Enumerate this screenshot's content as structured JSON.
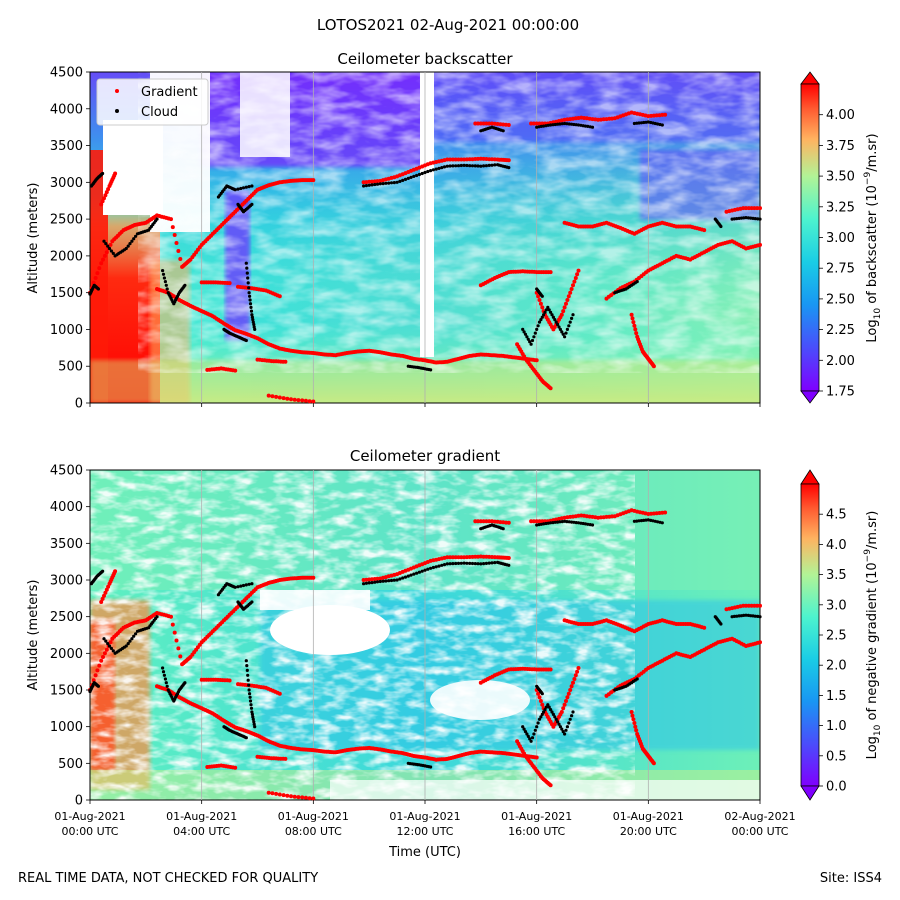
{
  "suptitle": "LOTOS2021 02-Aug-2021 00:00:00",
  "footer_left": "REAL TIME DATA, NOT CHECKED FOR QUALITY",
  "footer_right": "Site: ISS4",
  "chart_data": [
    {
      "type": "heatmap",
      "title": "Ceilometer backscatter",
      "ylabel": "Altitude (meters)",
      "xlabel": "",
      "x_range_hours": [
        0,
        24
      ],
      "ylim": [
        0,
        4500
      ],
      "yticks": [
        0,
        500,
        1000,
        1500,
        2000,
        2500,
        3000,
        3500,
        4000,
        4500
      ],
      "xticks_hours": [
        0,
        4,
        8,
        12,
        16,
        20,
        24
      ],
      "grid": "vertical",
      "legend": {
        "placement": "top-left",
        "entries": [
          "Gradient",
          "Cloud"
        ]
      },
      "colorbar": {
        "label_pre": "Log",
        "label_sub": "10",
        "label_mid": " of backscatter (10",
        "label_sup": "−9",
        "label_post": "/m.sr)",
        "range": [
          1.75,
          4.25
        ],
        "ticks": [
          1.75,
          2.0,
          2.25,
          2.5,
          2.75,
          3.0,
          3.25,
          3.5,
          3.75,
          4.0
        ],
        "tick_labels": [
          "1.75",
          "2.00",
          "2.25",
          "2.50",
          "2.75",
          "3.00",
          "3.25",
          "3.50",
          "3.75",
          "4.00"
        ]
      }
    },
    {
      "type": "heatmap",
      "title": "Ceilometer gradient",
      "ylabel": "Altitude (meters)",
      "xlabel": "Time (UTC)",
      "x_range_hours": [
        0,
        24
      ],
      "ylim": [
        0,
        4500
      ],
      "yticks": [
        0,
        500,
        1000,
        1500,
        2000,
        2500,
        3000,
        3500,
        4000,
        4500
      ],
      "xticks_hours": [
        0,
        4,
        8,
        12,
        16,
        20,
        24
      ],
      "xtick_labels": [
        [
          "01-Aug-2021",
          "00:00 UTC"
        ],
        [
          "01-Aug-2021",
          "04:00 UTC"
        ],
        [
          "01-Aug-2021",
          "08:00 UTC"
        ],
        [
          "01-Aug-2021",
          "12:00 UTC"
        ],
        [
          "01-Aug-2021",
          "16:00 UTC"
        ],
        [
          "01-Aug-2021",
          "20:00 UTC"
        ],
        [
          "02-Aug-2021",
          "00:00 UTC"
        ]
      ],
      "grid": "vertical",
      "colorbar": {
        "label_pre": "Log",
        "label_sub": "10",
        "label_mid": " of negative gradient (10",
        "label_sup": "−9",
        "label_post": "/m.sr)",
        "range": [
          0,
          5
        ],
        "ticks": [
          0,
          0.5,
          1,
          1.5,
          2,
          2.5,
          3,
          3.5,
          4,
          4.5
        ],
        "tick_labels": [
          "0.0",
          "0.5",
          "1.0",
          "1.5",
          "2.0",
          "2.5",
          "3.0",
          "3.5",
          "4.0",
          "4.5"
        ]
      }
    }
  ],
  "series": {
    "gradient": {
      "name": "Gradient",
      "color": "#ff0000",
      "segments": [
        [
          [
            0.0,
            1500
          ],
          [
            0.4,
            1900
          ],
          [
            0.8,
            2200
          ],
          [
            1.2,
            2350
          ],
          [
            1.6,
            2420
          ],
          [
            2.0,
            2450
          ],
          [
            2.4,
            2550
          ],
          [
            2.9,
            2500
          ],
          [
            3.3,
            1850
          ],
          [
            3.6,
            1950
          ],
          [
            4.0,
            2150
          ],
          [
            4.4,
            2300
          ],
          [
            4.8,
            2450
          ],
          [
            5.2,
            2600
          ],
          [
            5.6,
            2750
          ],
          [
            6.0,
            2900
          ],
          [
            6.4,
            2960
          ],
          [
            6.8,
            3000
          ],
          [
            7.2,
            3020
          ],
          [
            7.6,
            3030
          ],
          [
            8.0,
            3030
          ]
        ],
        [
          [
            0.4,
            2700
          ],
          [
            0.7,
            2950
          ],
          [
            0.9,
            3120
          ]
        ],
        [
          [
            2.4,
            1550
          ],
          [
            2.8,
            1500
          ],
          [
            3.2,
            1400
          ],
          [
            3.6,
            1320
          ],
          [
            4.0,
            1250
          ],
          [
            4.4,
            1180
          ],
          [
            4.8,
            1080
          ],
          [
            5.2,
            990
          ],
          [
            5.6,
            940
          ],
          [
            6.0,
            880
          ],
          [
            6.4,
            800
          ],
          [
            6.8,
            740
          ],
          [
            7.2,
            710
          ],
          [
            7.6,
            690
          ],
          [
            8.0,
            680
          ],
          [
            8.4,
            660
          ],
          [
            8.8,
            650
          ],
          [
            9.2,
            680
          ],
          [
            9.6,
            700
          ],
          [
            10.0,
            710
          ],
          [
            10.4,
            690
          ],
          [
            10.8,
            660
          ],
          [
            11.2,
            640
          ],
          [
            11.6,
            600
          ],
          [
            12.0,
            580
          ],
          [
            12.4,
            550
          ],
          [
            12.8,
            560
          ],
          [
            13.2,
            600
          ],
          [
            13.6,
            640
          ],
          [
            14.0,
            660
          ],
          [
            14.4,
            650
          ],
          [
            14.8,
            640
          ],
          [
            15.2,
            620
          ],
          [
            15.6,
            600
          ],
          [
            16.0,
            580
          ]
        ],
        [
          [
            4.0,
            1640
          ],
          [
            4.5,
            1640
          ],
          [
            5.0,
            1630
          ]
        ],
        [
          [
            5.3,
            1580
          ],
          [
            5.8,
            1560
          ],
          [
            6.3,
            1530
          ],
          [
            6.8,
            1450
          ]
        ],
        [
          [
            6.0,
            590
          ],
          [
            6.5,
            570
          ],
          [
            7.0,
            560
          ]
        ],
        [
          [
            4.2,
            450
          ],
          [
            4.7,
            470
          ],
          [
            5.2,
            440
          ]
        ],
        [
          [
            9.8,
            3000
          ],
          [
            10.4,
            3020
          ],
          [
            11.0,
            3080
          ],
          [
            11.6,
            3170
          ],
          [
            12.2,
            3260
          ],
          [
            12.8,
            3310
          ],
          [
            13.4,
            3310
          ],
          [
            14.0,
            3320
          ],
          [
            14.6,
            3310
          ],
          [
            15.0,
            3300
          ]
        ],
        [
          [
            13.8,
            3800
          ],
          [
            14.4,
            3800
          ],
          [
            15.0,
            3780
          ]
        ],
        [
          [
            15.8,
            3800
          ],
          [
            16.4,
            3800
          ],
          [
            17.0,
            3850
          ],
          [
            17.6,
            3880
          ],
          [
            18.2,
            3850
          ],
          [
            18.8,
            3870
          ],
          [
            19.4,
            3950
          ],
          [
            20.0,
            3900
          ],
          [
            20.6,
            3920
          ]
        ],
        [
          [
            14.0,
            1600
          ],
          [
            14.5,
            1700
          ],
          [
            15.0,
            1780
          ],
          [
            15.5,
            1790
          ],
          [
            16.0,
            1780
          ],
          [
            16.5,
            1780
          ]
        ],
        [
          [
            18.5,
            1420
          ],
          [
            19.0,
            1560
          ],
          [
            19.5,
            1650
          ],
          [
            20.0,
            1800
          ],
          [
            20.5,
            1900
          ],
          [
            21.0,
            2000
          ],
          [
            21.5,
            1950
          ],
          [
            22.0,
            2050
          ],
          [
            22.5,
            2150
          ],
          [
            23.0,
            2200
          ],
          [
            23.5,
            2100
          ],
          [
            24.0,
            2150
          ]
        ],
        [
          [
            17.0,
            2450
          ],
          [
            17.5,
            2400
          ],
          [
            18.0,
            2400
          ],
          [
            18.5,
            2450
          ],
          [
            19.0,
            2380
          ],
          [
            19.5,
            2300
          ],
          [
            20.0,
            2400
          ],
          [
            20.5,
            2450
          ],
          [
            21.0,
            2400
          ],
          [
            21.5,
            2400
          ],
          [
            22.0,
            2350
          ]
        ],
        [
          [
            22.8,
            2600
          ],
          [
            23.4,
            2650
          ],
          [
            24.0,
            2650
          ]
        ],
        [
          [
            16.0,
            1500
          ],
          [
            16.3,
            1200
          ],
          [
            16.6,
            1000
          ],
          [
            16.9,
            1200
          ],
          [
            17.2,
            1500
          ],
          [
            17.5,
            1800
          ]
        ],
        [
          [
            15.3,
            800
          ],
          [
            15.6,
            600
          ],
          [
            15.9,
            450
          ],
          [
            16.2,
            300
          ],
          [
            16.5,
            200
          ]
        ],
        [
          [
            19.4,
            1200
          ],
          [
            19.6,
            900
          ],
          [
            19.8,
            700
          ],
          [
            20.0,
            600
          ],
          [
            20.2,
            500
          ]
        ],
        [
          [
            6.4,
            100
          ],
          [
            7.2,
            50
          ],
          [
            8.0,
            20
          ]
        ]
      ]
    },
    "cloud": {
      "name": "Cloud",
      "color": "#000000",
      "segments": [
        [
          [
            0.0,
            1480
          ],
          [
            0.15,
            1600
          ],
          [
            0.3,
            1550
          ]
        ],
        [
          [
            0.05,
            2950
          ],
          [
            0.25,
            3050
          ],
          [
            0.45,
            3120
          ]
        ],
        [
          [
            0.5,
            2200
          ],
          [
            0.9,
            2000
          ],
          [
            1.3,
            2100
          ],
          [
            1.7,
            2300
          ],
          [
            2.1,
            2350
          ],
          [
            2.4,
            2500
          ]
        ],
        [
          [
            2.6,
            1800
          ],
          [
            2.8,
            1500
          ],
          [
            3.0,
            1350
          ],
          [
            3.2,
            1500
          ],
          [
            3.4,
            1600
          ]
        ],
        [
          [
            4.6,
            2800
          ],
          [
            4.9,
            2950
          ],
          [
            5.2,
            2900
          ],
          [
            5.8,
            2950
          ]
        ],
        [
          [
            5.3,
            2700
          ],
          [
            5.5,
            2600
          ],
          [
            5.8,
            2700
          ]
        ],
        [
          [
            4.8,
            1000
          ],
          [
            5.0,
            950
          ],
          [
            5.3,
            900
          ],
          [
            5.6,
            850
          ]
        ],
        [
          [
            5.6,
            1900
          ],
          [
            5.7,
            1500
          ],
          [
            5.8,
            1200
          ],
          [
            5.9,
            1000
          ]
        ],
        [
          [
            9.8,
            2950
          ],
          [
            10.4,
            2980
          ],
          [
            11.0,
            3000
          ],
          [
            11.6,
            3080
          ],
          [
            12.2,
            3160
          ],
          [
            12.8,
            3220
          ],
          [
            13.4,
            3230
          ],
          [
            14.0,
            3220
          ],
          [
            14.6,
            3240
          ],
          [
            15.0,
            3200
          ]
        ],
        [
          [
            11.4,
            500
          ],
          [
            11.8,
            480
          ],
          [
            12.2,
            450
          ]
        ],
        [
          [
            14.0,
            3700
          ],
          [
            14.4,
            3750
          ],
          [
            14.8,
            3700
          ]
        ],
        [
          [
            16.0,
            3750
          ],
          [
            16.5,
            3780
          ],
          [
            17.0,
            3800
          ],
          [
            17.5,
            3780
          ],
          [
            18.0,
            3750
          ]
        ],
        [
          [
            19.5,
            3800
          ],
          [
            20.0,
            3820
          ],
          [
            20.5,
            3780
          ]
        ],
        [
          [
            15.5,
            1000
          ],
          [
            15.8,
            800
          ],
          [
            16.1,
            1100
          ],
          [
            16.4,
            1300
          ],
          [
            16.7,
            1100
          ],
          [
            17.0,
            900
          ],
          [
            17.3,
            1200
          ]
        ],
        [
          [
            16.0,
            1550
          ],
          [
            16.2,
            1450
          ]
        ],
        [
          [
            18.8,
            1500
          ],
          [
            19.2,
            1550
          ],
          [
            19.6,
            1650
          ]
        ],
        [
          [
            23.0,
            2500
          ],
          [
            23.5,
            2520
          ],
          [
            24.0,
            2500
          ]
        ],
        [
          [
            22.4,
            2500
          ],
          [
            22.6,
            2400
          ]
        ]
      ]
    }
  }
}
